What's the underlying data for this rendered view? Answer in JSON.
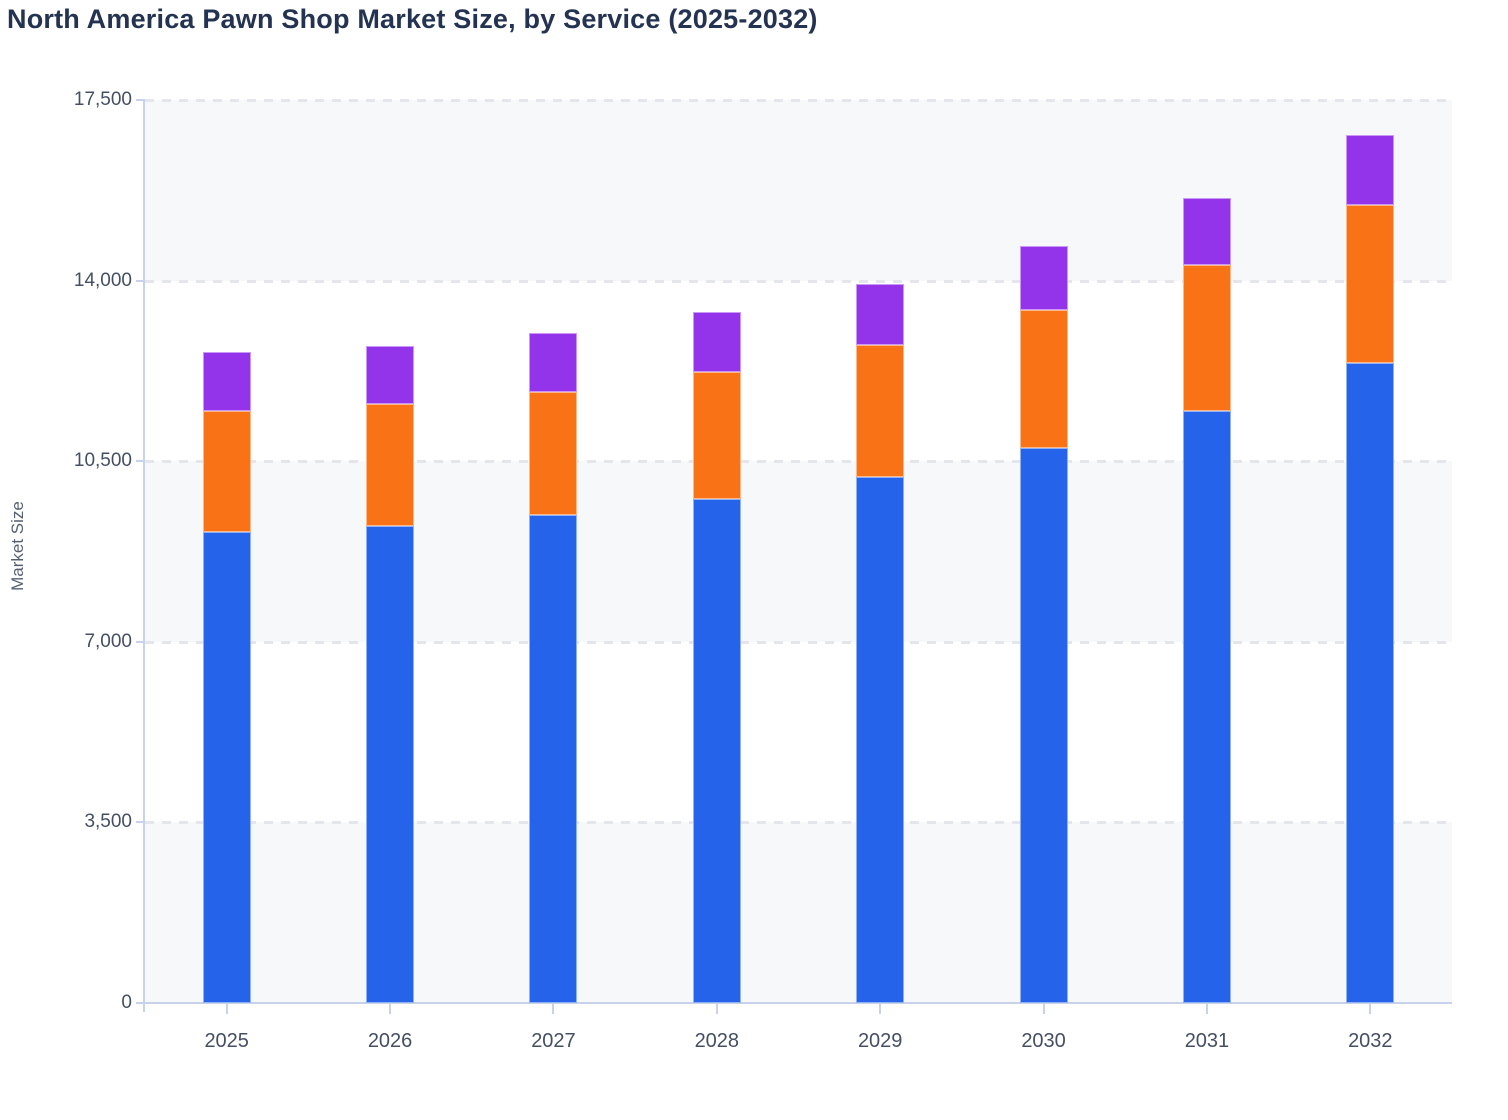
{
  "title": "North America Pawn Shop Market Size, by Service (2025-2032)",
  "chart_data": {
    "type": "bar",
    "stacked": true,
    "title": "North America Pawn Shop Market Size, by Service (2025-2032)",
    "xlabel": "",
    "ylabel": "Market Size",
    "categories": [
      "2025",
      "2026",
      "2027",
      "2028",
      "2029",
      "2030",
      "2031",
      "2032"
    ],
    "series": [
      {
        "name": "blue",
        "color": "#2563eb",
        "values": [
          9120,
          9250,
          9460,
          9760,
          10190,
          10750,
          11480,
          12400
        ]
      },
      {
        "name": "orange",
        "color": "#f97316",
        "values": [
          2350,
          2350,
          2380,
          2460,
          2560,
          2690,
          2830,
          3070
        ]
      },
      {
        "name": "purple",
        "color": "#9333ea",
        "values": [
          1140,
          1140,
          1150,
          1180,
          1180,
          1240,
          1290,
          1350
        ]
      }
    ],
    "totals": [
      12610,
      12740,
      12990,
      13400,
      13930,
      14680,
      15600,
      16820
    ],
    "ylim": [
      0,
      17500
    ],
    "yticks": [
      0,
      3500,
      7000,
      10500,
      14000,
      17500
    ],
    "ytick_labels": [
      "0",
      "3,500",
      "7,000",
      "10,500",
      "14,000",
      "17,500"
    ],
    "grid": "horizontal dashed, alternating shaded bands",
    "legend": "none",
    "band_color": "#f7f8fa",
    "gridline_color": "#e4e6ec",
    "axis_color": "#c8d2ea",
    "title_color": "#243351",
    "tick_label_color": "#454f63"
  }
}
